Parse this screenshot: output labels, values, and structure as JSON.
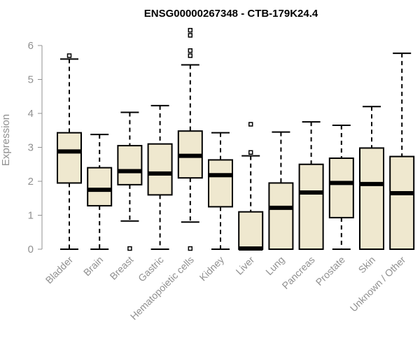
{
  "chart_data": {
    "type": "boxplot",
    "title": "ENSG00000267348 - CTB-179K24.4",
    "xlabel": "",
    "ylabel": "Expression",
    "ylim": [
      0,
      6.6
    ],
    "yticks": [
      0,
      1,
      2,
      3,
      4,
      5,
      6
    ],
    "box_color": "#efe8cf",
    "categories": [
      "Bladder",
      "Brain",
      "Breast",
      "Gastric",
      "Hematopoietic cells",
      "Kidney",
      "Liver",
      "Lung",
      "Pancreas",
      "Prostate",
      "Skin",
      "Unknown / Other"
    ],
    "boxes": [
      {
        "label": "Bladder",
        "min": 0.0,
        "q1": 1.95,
        "median": 2.88,
        "q3": 3.43,
        "max": 5.6,
        "outliers": [
          5.7
        ]
      },
      {
        "label": "Brain",
        "min": 0.0,
        "q1": 1.28,
        "median": 1.75,
        "q3": 2.4,
        "max": 3.38,
        "outliers": []
      },
      {
        "label": "Breast",
        "min": 0.83,
        "q1": 1.9,
        "median": 2.3,
        "q3": 3.05,
        "max": 4.03,
        "outliers": [
          0.02
        ]
      },
      {
        "label": "Gastric",
        "min": 0.0,
        "q1": 1.6,
        "median": 2.23,
        "q3": 3.1,
        "max": 4.23,
        "outliers": []
      },
      {
        "label": "Hematopoietic cells",
        "min": 0.8,
        "q1": 2.1,
        "median": 2.75,
        "q3": 3.48,
        "max": 5.43,
        "outliers": [
          0.02,
          5.7,
          5.85,
          6.3,
          6.45
        ]
      },
      {
        "label": "Kidney",
        "min": 0.0,
        "q1": 1.25,
        "median": 2.18,
        "q3": 2.63,
        "max": 3.43,
        "outliers": []
      },
      {
        "label": "Liver",
        "min": 0.0,
        "q1": 0.0,
        "median": 0.02,
        "q3": 1.1,
        "max": 2.75,
        "outliers": [
          2.85,
          3.68
        ]
      },
      {
        "label": "Lung",
        "min": 0.0,
        "q1": 0.0,
        "median": 1.22,
        "q3": 1.95,
        "max": 3.45,
        "outliers": []
      },
      {
        "label": "Pancreas",
        "min": 0.0,
        "q1": 0.0,
        "median": 1.67,
        "q3": 2.5,
        "max": 3.75,
        "outliers": []
      },
      {
        "label": "Prostate",
        "min": 0.0,
        "q1": 0.93,
        "median": 1.95,
        "q3": 2.68,
        "max": 3.65,
        "outliers": []
      },
      {
        "label": "Skin",
        "min": 0.0,
        "q1": 0.0,
        "median": 1.92,
        "q3": 2.98,
        "max": 4.2,
        "outliers": []
      },
      {
        "label": "Unknown / Other",
        "min": 0.0,
        "q1": 0.0,
        "median": 1.65,
        "q3": 2.73,
        "max": 5.77,
        "outliers": []
      }
    ]
  }
}
